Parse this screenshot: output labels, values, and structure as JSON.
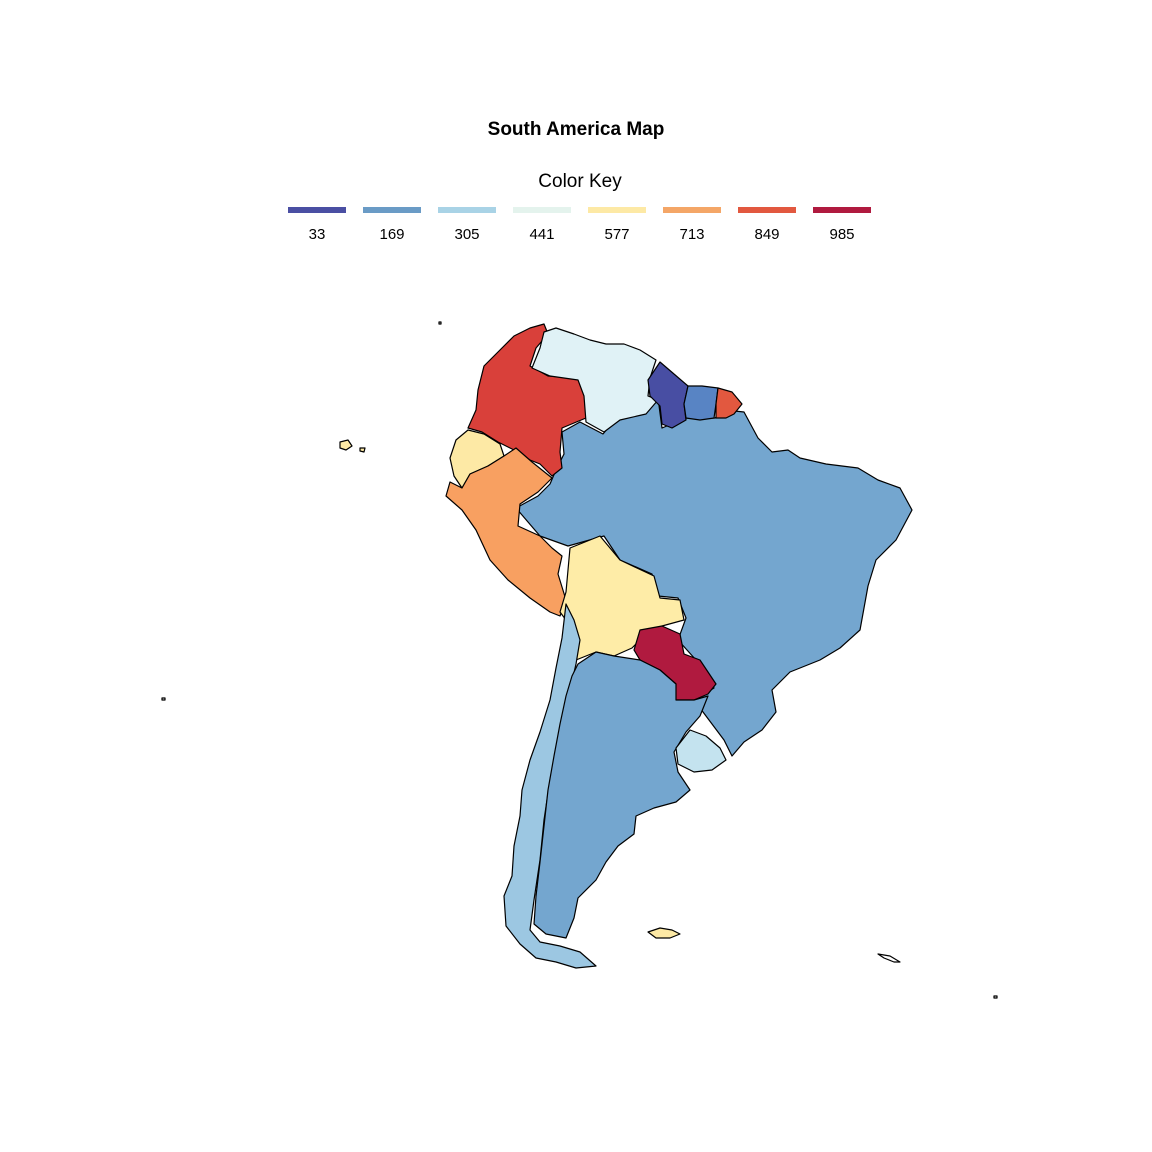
{
  "title": "South America Map",
  "legend": {
    "title": "Color Key",
    "items": [
      {
        "label": "33",
        "color": "#4a4fa3"
      },
      {
        "label": "169",
        "color": "#6a9bc6"
      },
      {
        "label": "305",
        "color": "#a9d3e6"
      },
      {
        "label": "441",
        "color": "#e4f3ed"
      },
      {
        "label": "577",
        "color": "#fde9a5"
      },
      {
        "label": "713",
        "color": "#f4a667"
      },
      {
        "label": "849",
        "color": "#e2583f"
      },
      {
        "label": "985",
        "color": "#b01a3f"
      }
    ]
  },
  "regions": [
    {
      "name": "Colombia",
      "color": "#d9403a"
    },
    {
      "name": "Venezuela",
      "color": "#e0f2f6"
    },
    {
      "name": "Guyana",
      "color": "#484ea3"
    },
    {
      "name": "Suriname",
      "color": "#5884c4"
    },
    {
      "name": "French Guiana",
      "color": "#e2583f"
    },
    {
      "name": "Ecuador",
      "color": "#fde9a5"
    },
    {
      "name": "Peru",
      "color": "#f8a061"
    },
    {
      "name": "Brazil",
      "color": "#74a6cf"
    },
    {
      "name": "Bolivia",
      "color": "#feeca7"
    },
    {
      "name": "Paraguay",
      "color": "#b01a3f"
    },
    {
      "name": "Chile",
      "color": "#9cc7e2"
    },
    {
      "name": "Argentina",
      "color": "#74a6cf"
    },
    {
      "name": "Uruguay",
      "color": "#c4e3ef"
    },
    {
      "name": "Galapagos",
      "color": "#fde9a5"
    },
    {
      "name": "Falkland Islands",
      "color": "#fde9a5"
    },
    {
      "name": "South Georgia",
      "color": "#ffffff"
    }
  ]
}
